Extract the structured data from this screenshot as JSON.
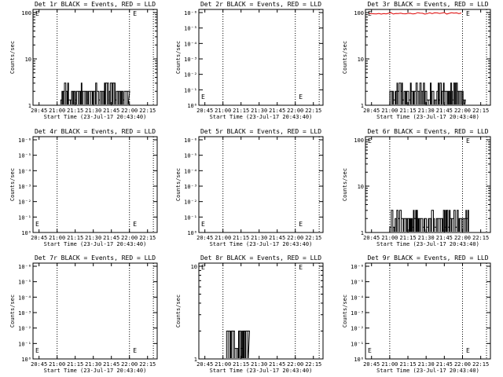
{
  "x_ticks": [
    "20:45",
    "21:00",
    "21:15",
    "21:30",
    "21:45",
    "22:00",
    "22:15"
  ],
  "xlabel": "Start Time (23-Jul-17 20:43:40)",
  "ylabel": "Counts/sec",
  "chart_data": [
    {
      "type": "line",
      "title": "Det 1r BLACK = Events, RED = LLD",
      "scale": "log",
      "yticks": [
        "1",
        "10",
        "100"
      ],
      "ylim": [
        1,
        100
      ],
      "markers": [
        {
          "label": "E",
          "t": "20:45",
          "v": "upper"
        },
        {
          "label": "E",
          "t": "22:01",
          "v": "upper"
        }
      ],
      "burst": {
        "from": "21:03",
        "to": "21:59",
        "level": 2,
        "peak": 3
      }
    },
    {
      "type": "line",
      "title": "Det 2r BLACK = Events, RED = LLD",
      "scale": "log",
      "yticks": [
        "10⁰",
        "10⁻¹",
        "10⁻²",
        "10⁻³",
        "10⁻⁴",
        "10⁻⁵",
        "10⁻⁶"
      ],
      "ylim": [
        1,
        1e-06
      ],
      "markers": [
        {
          "label": "E",
          "t": "20:45",
          "v": "lower"
        },
        {
          "label": "E",
          "t": "22:01",
          "v": "lower"
        }
      ],
      "burst": null
    },
    {
      "type": "line",
      "title": "Det 3r BLACK = Events, RED = LLD",
      "scale": "log",
      "yticks": [
        "1",
        "10",
        "100"
      ],
      "ylim": [
        1,
        100
      ],
      "markers": [
        {
          "label": "E",
          "t": "20:45",
          "v": "upper"
        },
        {
          "label": "E",
          "t": "22:01",
          "v": "upper"
        }
      ],
      "burst": {
        "from": "21:00",
        "to": "22:02",
        "level": 2,
        "peak": 3
      },
      "red_level": 100
    },
    {
      "type": "line",
      "title": "Det 4r BLACK = Events, RED = LLD",
      "scale": "log",
      "yticks": [
        "10⁰",
        "10⁻¹",
        "10⁻²",
        "10⁻³",
        "10⁻⁴",
        "10⁻⁵",
        "10⁻⁶"
      ],
      "ylim": [
        1,
        1e-06
      ],
      "markers": [
        {
          "label": "E",
          "t": "20:45",
          "v": "lower"
        },
        {
          "label": "E",
          "t": "22:01",
          "v": "lower"
        }
      ],
      "burst": null
    },
    {
      "type": "line",
      "title": "Det 5r BLACK = Events, RED = LLD",
      "scale": "log",
      "yticks": [
        "10⁰",
        "10⁻¹",
        "10⁻²",
        "10⁻³",
        "10⁻⁴",
        "10⁻⁵",
        "10⁻⁶"
      ],
      "ylim": [
        1,
        1e-06
      ],
      "markers": [
        {
          "label": "E",
          "t": "20:45",
          "v": "lower"
        },
        {
          "label": "E",
          "t": "22:01",
          "v": "lower"
        }
      ],
      "burst": null
    },
    {
      "type": "line",
      "title": "Det 6r BLACK = Events, RED = LLD",
      "scale": "log",
      "yticks": [
        "1",
        "10",
        "100"
      ],
      "ylim": [
        1,
        100
      ],
      "markers": [
        {
          "label": "E",
          "t": "20:45",
          "v": "upper"
        },
        {
          "label": "E",
          "t": "22:01",
          "v": "upper"
        }
      ],
      "burst": {
        "from": "21:00",
        "to": "22:05",
        "level": 2,
        "peak": 3
      }
    },
    {
      "type": "line",
      "title": "Det 7r BLACK = Events, RED = LLD",
      "scale": "log",
      "yticks": [
        "10⁰",
        "10⁻¹",
        "10⁻²",
        "10⁻³",
        "10⁻⁴",
        "10⁻⁵",
        "10⁻⁶"
      ],
      "ylim": [
        1,
        1e-06
      ],
      "markers": [
        {
          "label": "E",
          "t": "20:45",
          "v": "lower"
        },
        {
          "label": "E",
          "t": "22:01",
          "v": "lower"
        }
      ],
      "burst": null
    },
    {
      "type": "line",
      "title": "Det 8r BLACK = Events, RED = LLD",
      "scale": "log",
      "yticks": [
        "1",
        "10"
      ],
      "ylim": [
        1,
        10
      ],
      "markers": [
        {
          "label": "E",
          "t": "20:45",
          "v": "upper"
        },
        {
          "label": "E",
          "t": "22:01",
          "v": "upper"
        }
      ],
      "burst": {
        "from": "21:03",
        "to": "21:21",
        "level": 2,
        "peak": 2
      }
    },
    {
      "type": "line",
      "title": "Det 9r BLACK = Events, RED = LLD",
      "scale": "log",
      "yticks": [
        "10⁰",
        "10⁻¹",
        "10⁻²",
        "10⁻³",
        "10⁻⁴",
        "10⁻⁵",
        "10⁻⁶"
      ],
      "ylim": [
        1,
        1e-06
      ],
      "markers": [
        {
          "label": "E",
          "t": "20:45",
          "v": "lower"
        },
        {
          "label": "E",
          "t": "22:01",
          "v": "lower"
        }
      ],
      "burst": null
    }
  ]
}
